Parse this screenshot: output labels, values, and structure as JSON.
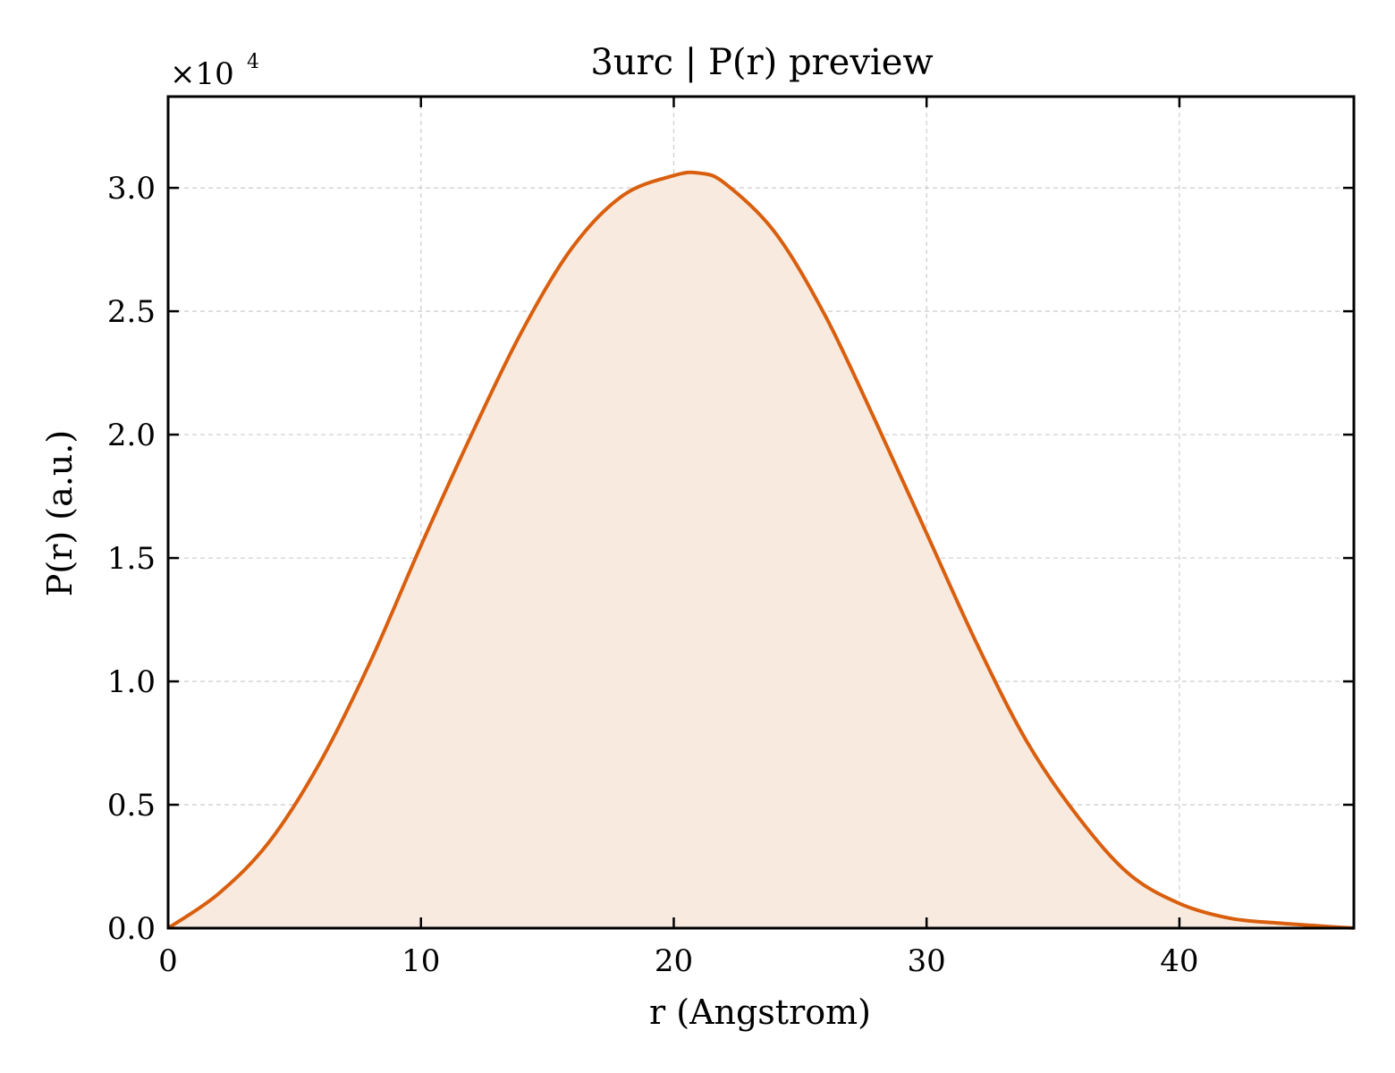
{
  "chart_data": {
    "type": "area",
    "title": "3urc | P(r) preview",
    "xlabel": "r (Angstrom)",
    "ylabel": "P(r) (a.u.)",
    "y_multiplier_label": "×10",
    "y_multiplier_exponent": "4",
    "xlim": [
      0,
      46.9
    ],
    "ylim": [
      0,
      3.37
    ],
    "y_scale_factor": 10000,
    "grid": true,
    "x_ticks": [
      0,
      10,
      20,
      30,
      40
    ],
    "x_tick_labels": [
      "0",
      "10",
      "20",
      "30",
      "40"
    ],
    "y_ticks": [
      0,
      0.5,
      1.0,
      1.5,
      2.0,
      2.5,
      3.0
    ],
    "y_tick_labels": [
      "0.0",
      "0.5",
      "1.0",
      "1.5",
      "2.0",
      "2.5",
      "3.0"
    ],
    "line_color": "#d95f0e",
    "fill_color": "#f8eadf",
    "series": [
      {
        "x": [
          0,
          2,
          4,
          6,
          8,
          10,
          12,
          14,
          16,
          18,
          20,
          21,
          22,
          24,
          26,
          28,
          30,
          32,
          34,
          36,
          38,
          40,
          42,
          44,
          46.9
        ],
        "values": [
          0.0,
          0.14,
          0.35,
          0.67,
          1.08,
          1.55,
          2.0,
          2.42,
          2.76,
          2.97,
          3.05,
          3.06,
          3.02,
          2.82,
          2.48,
          2.05,
          1.6,
          1.15,
          0.75,
          0.45,
          0.22,
          0.1,
          0.04,
          0.02,
          0.0
        ]
      }
    ]
  }
}
